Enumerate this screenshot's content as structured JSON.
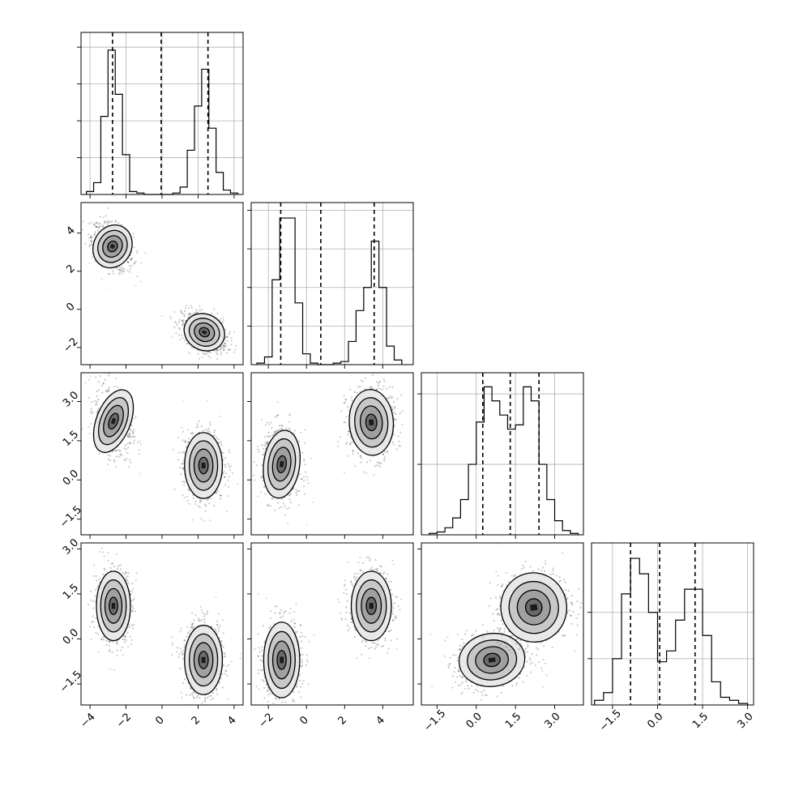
{
  "chart_data": {
    "type": "corner",
    "n_params": 4,
    "params": [
      {
        "range": [
          -4.5,
          4.5
        ],
        "ticks": [
          -4,
          -2,
          0,
          2,
          4
        ],
        "tick_labels": [
          "−4",
          "−2",
          "0",
          "2",
          "4"
        ],
        "show_y_labels": false
      },
      {
        "range": [
          -2.9,
          5.6
        ],
        "ticks": [
          -2,
          0,
          2,
          4
        ],
        "tick_labels": [
          "−2",
          "0",
          "2",
          "4"
        ],
        "show_y_labels": true
      },
      {
        "range": [
          -2.1,
          4.1
        ],
        "ticks": [
          -1.5,
          0.0,
          1.5,
          3.0
        ],
        "tick_labels": [
          "−1.5",
          "0.0",
          "1.5",
          "3.0"
        ],
        "show_y_labels": true
      },
      {
        "range": [
          -2.2,
          3.2
        ],
        "ticks": [
          -1.5,
          0.0,
          1.5,
          3.0
        ],
        "tick_labels": [
          "−1.5",
          "0.0",
          "1.5",
          "3.0"
        ],
        "show_y_labels": true
      }
    ],
    "histograms": [
      {
        "bin_edges": [
          -4.2,
          -3.8,
          -3.4,
          -3.0,
          -2.6,
          -2.2,
          -1.8,
          -1.4,
          -1.0,
          -0.6,
          -0.2,
          0.2,
          0.6,
          1.0,
          1.4,
          1.8,
          2.2,
          2.6,
          3.0,
          3.4,
          3.8,
          4.2
        ],
        "counts": [
          0.02,
          0.08,
          0.53,
          0.98,
          0.68,
          0.27,
          0.02,
          0.01,
          0,
          0,
          0,
          0,
          0.01,
          0.05,
          0.3,
          0.6,
          0.85,
          0.45,
          0.15,
          0.03,
          0.01
        ],
        "ymax": 1.1,
        "ygrid": [
          0.25,
          0.5,
          0.75,
          1.0
        ],
        "quantiles": [
          -2.75,
          -0.05,
          2.55
        ]
      },
      {
        "bin_edges": [
          -2.6,
          -2.2,
          -1.8,
          -1.4,
          -1.0,
          -0.6,
          -0.2,
          0.2,
          0.6,
          1.0,
          1.4,
          1.8,
          2.2,
          2.6,
          3.0,
          3.4,
          3.8,
          4.2,
          4.6,
          5.0
        ],
        "counts": [
          0.01,
          0.05,
          0.55,
          0.95,
          0.95,
          0.4,
          0.07,
          0.01,
          0,
          0,
          0.01,
          0.02,
          0.15,
          0.35,
          0.5,
          0.8,
          0.5,
          0.12,
          0.03
        ],
        "ymax": 1.05,
        "ygrid": [
          0.25,
          0.5,
          0.75,
          1.0
        ],
        "quantiles": [
          -1.35,
          0.75,
          3.55
        ]
      },
      {
        "bin_edges": [
          -1.8,
          -1.5,
          -1.2,
          -0.9,
          -0.6,
          -0.3,
          0.0,
          0.3,
          0.6,
          0.9,
          1.2,
          1.5,
          1.8,
          2.1,
          2.4,
          2.7,
          3.0,
          3.3,
          3.6,
          3.9
        ],
        "counts": [
          0.01,
          0.02,
          0.05,
          0.12,
          0.25,
          0.5,
          0.8,
          1.05,
          0.95,
          0.85,
          0.75,
          0.78,
          1.05,
          0.95,
          0.5,
          0.25,
          0.1,
          0.03,
          0.01
        ],
        "ymax": 1.15,
        "ygrid": [
          0.5,
          1.0
        ],
        "quantiles": [
          0.25,
          1.3,
          2.4
        ]
      },
      {
        "bin_edges": [
          -2.1,
          -1.8,
          -1.5,
          -1.2,
          -0.9,
          -0.6,
          -0.3,
          0.0,
          0.3,
          0.6,
          0.9,
          1.2,
          1.5,
          1.8,
          2.1,
          2.4,
          2.7,
          3.0
        ],
        "counts": [
          0.03,
          0.08,
          0.3,
          0.72,
          0.95,
          0.85,
          0.6,
          0.28,
          0.35,
          0.55,
          0.75,
          0.75,
          0.45,
          0.15,
          0.05,
          0.03,
          0.01
        ],
        "ymax": 1.05,
        "ygrid": [
          0.3,
          0.6
        ],
        "quantiles": [
          -0.9,
          0.07,
          1.25
        ]
      }
    ],
    "blob_sets": [
      {
        "row": 1,
        "col": 0,
        "blobs": [
          {
            "cx": -2.75,
            "cy": 3.3,
            "sx": 0.5,
            "sy": 0.55,
            "rho": -0.4
          },
          {
            "cx": 2.35,
            "cy": -1.2,
            "sx": 0.55,
            "sy": 0.45,
            "rho": -0.4
          }
        ]
      },
      {
        "row": 2,
        "col": 0,
        "blobs": [
          {
            "cx": -2.7,
            "cy": 2.25,
            "sx": 0.45,
            "sy": 0.6,
            "rho": -0.3
          },
          {
            "cx": 2.3,
            "cy": 0.55,
            "sx": 0.5,
            "sy": 0.6,
            "rho": 0.0
          }
        ]
      },
      {
        "row": 2,
        "col": 1,
        "blobs": [
          {
            "cx": -1.3,
            "cy": 0.6,
            "sx": 0.45,
            "sy": 0.62,
            "rho": -0.1
          },
          {
            "cx": 3.4,
            "cy": 2.2,
            "sx": 0.55,
            "sy": 0.6,
            "rho": 0.05
          }
        ]
      },
      {
        "row": 3,
        "col": 0,
        "blobs": [
          {
            "cx": -2.7,
            "cy": 1.1,
            "sx": 0.45,
            "sy": 0.55,
            "rho": 0.0
          },
          {
            "cx": 2.3,
            "cy": -0.7,
            "sx": 0.5,
            "sy": 0.55,
            "rho": 0.0
          }
        ]
      },
      {
        "row": 3,
        "col": 1,
        "blobs": [
          {
            "cx": -1.3,
            "cy": -0.7,
            "sx": 0.45,
            "sy": 0.6,
            "rho": 0.0
          },
          {
            "cx": 3.4,
            "cy": 1.1,
            "sx": 0.5,
            "sy": 0.55,
            "rho": 0.0
          }
        ]
      },
      {
        "row": 3,
        "col": 2,
        "blobs": [
          {
            "cx": 0.6,
            "cy": -0.7,
            "sx": 0.6,
            "sy": 0.42,
            "rho": 0.1
          },
          {
            "cx": 2.2,
            "cy": 1.05,
            "sx": 0.6,
            "sy": 0.55,
            "rho": 0.1
          }
        ]
      }
    ],
    "contour_levels_sigma": [
      0.5,
      1.0,
      1.5,
      2.0
    ],
    "density_shades": [
      "#ffffff",
      "#e8e8e8",
      "#c8c8c8",
      "#a0a0a0",
      "#6a6a6a",
      "#1a1a1a"
    ],
    "scatter_color": "#000000",
    "title": "",
    "legend": ""
  }
}
